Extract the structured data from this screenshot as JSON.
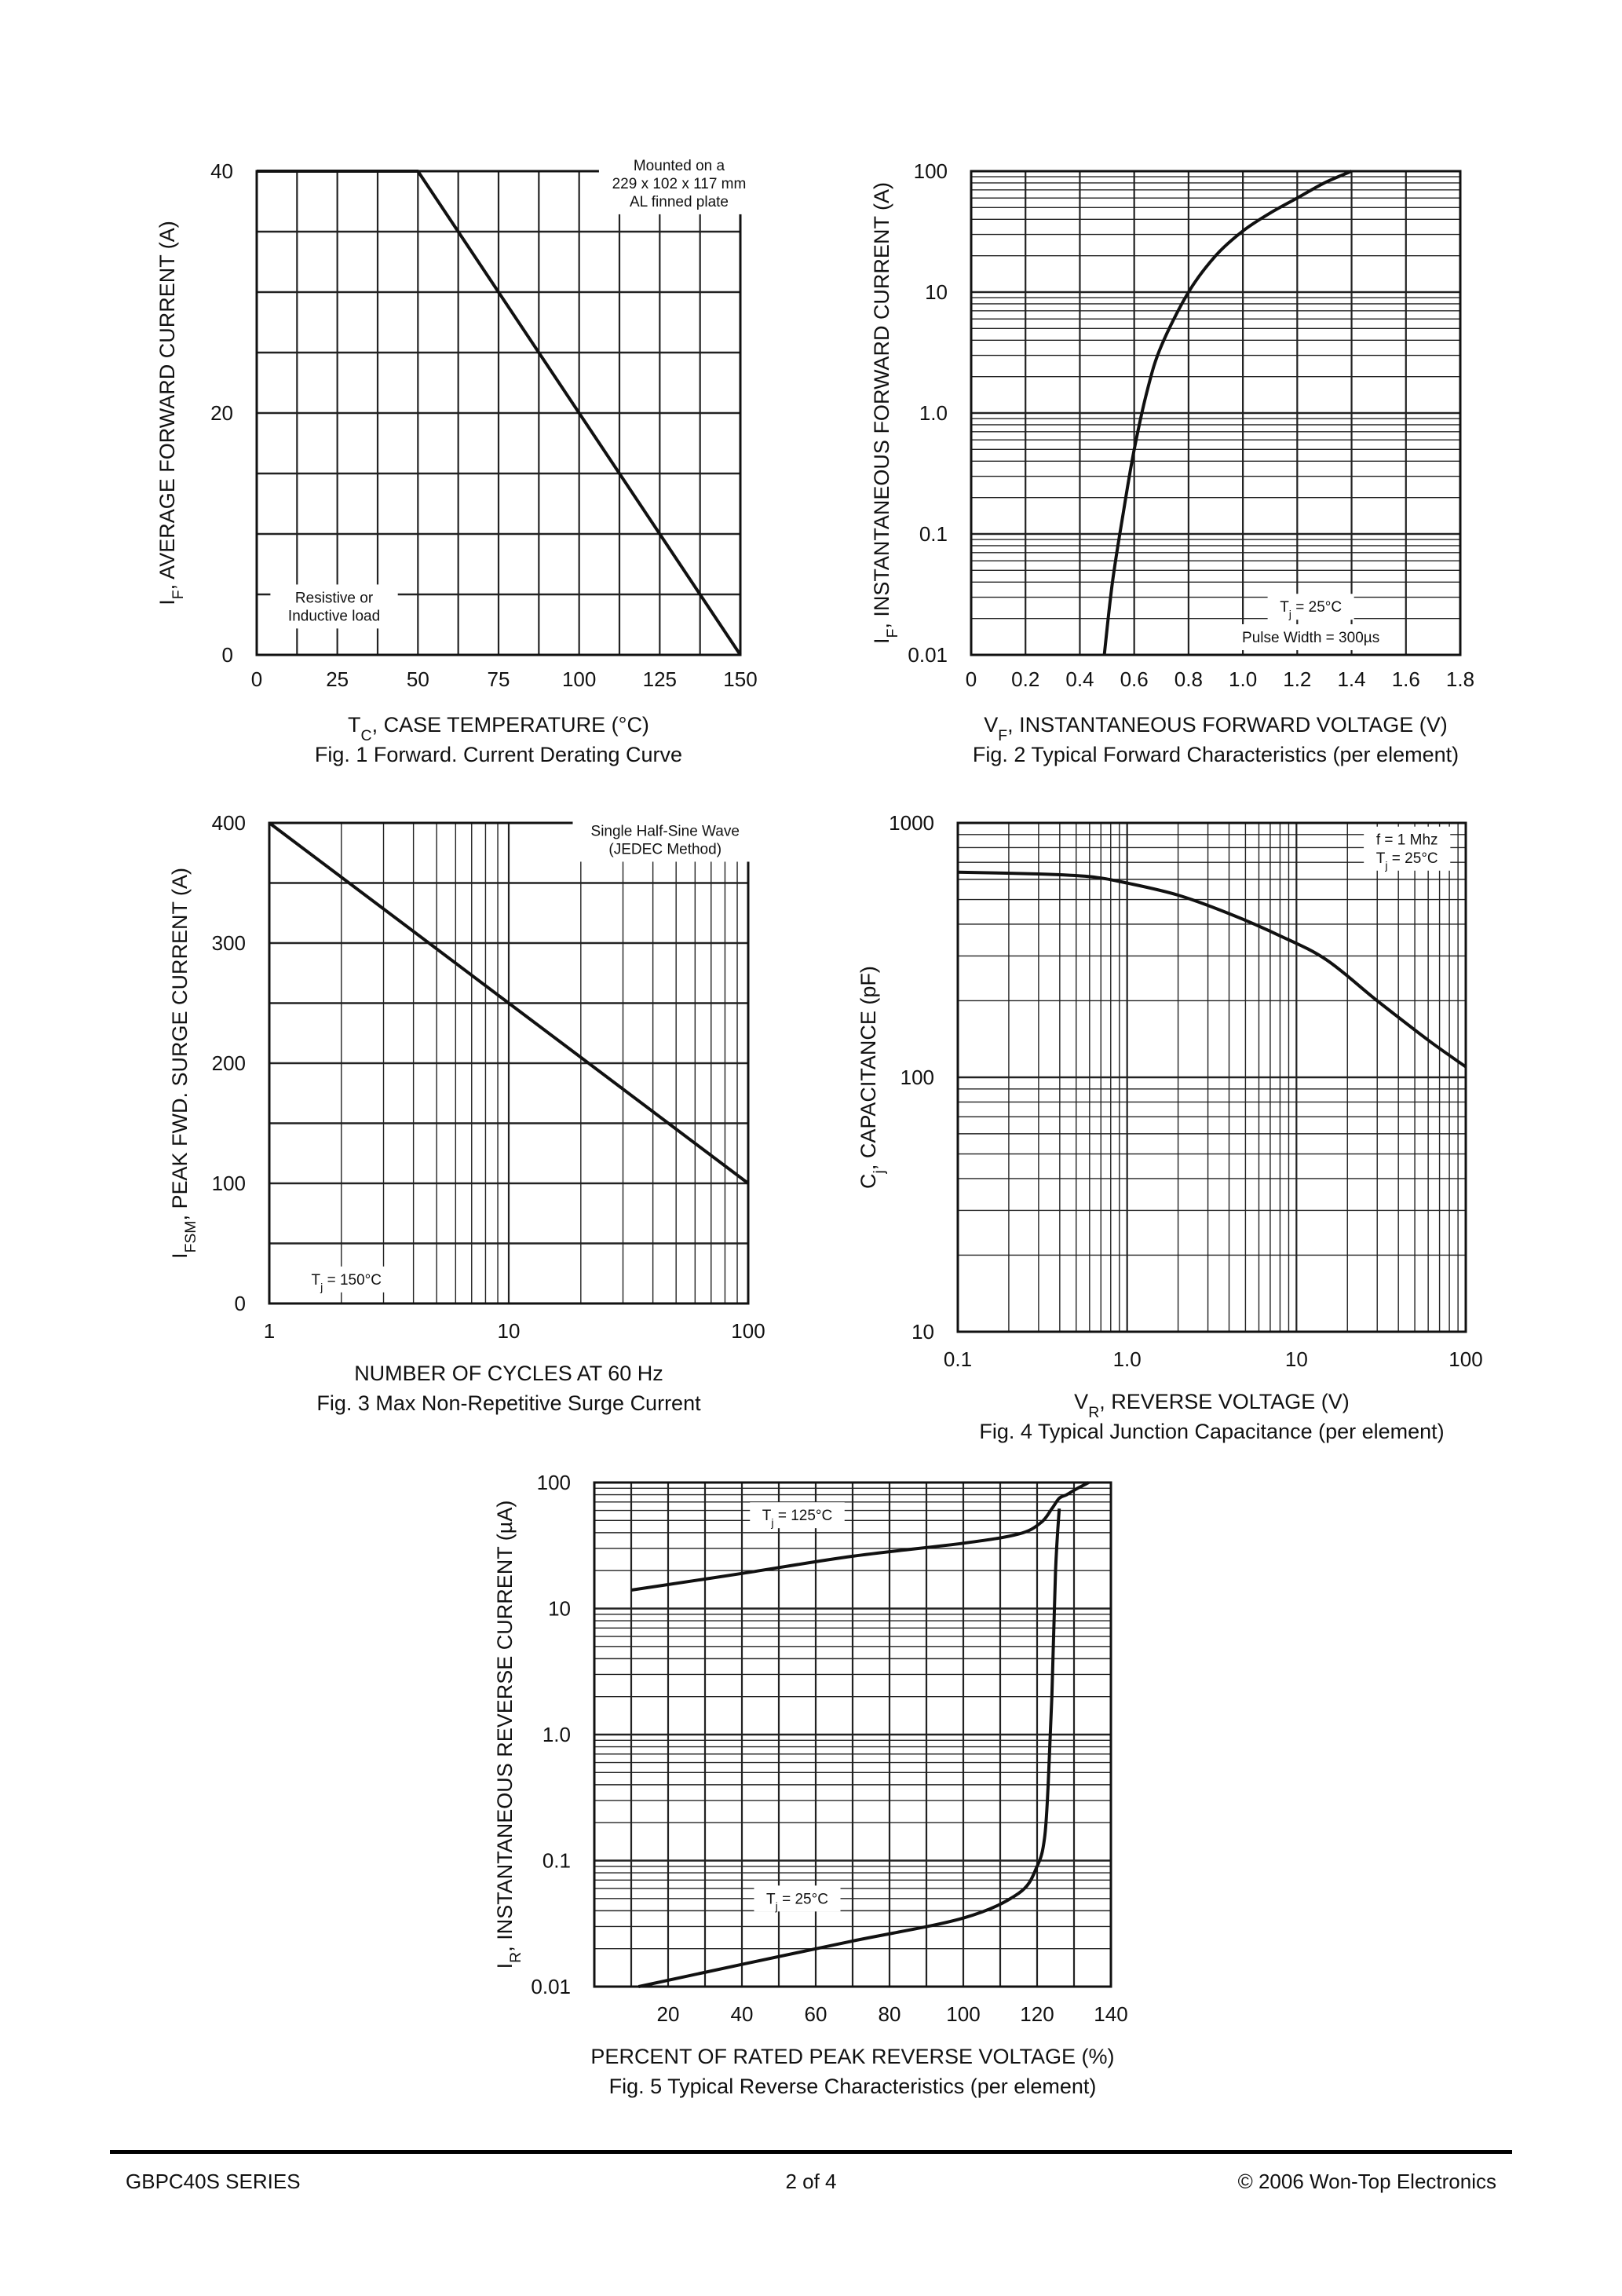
{
  "footer": {
    "series": "GBPC40S SERIES",
    "page": "2 of 4",
    "copyright": "© 2006 Won-Top Electronics"
  },
  "chart_data": [
    {
      "id": "fig1",
      "type": "line",
      "caption": "Fig. 1  Forward. Current Derating Curve",
      "xlabel": {
        "main": "T",
        "sub": "C",
        "rest": ", CASE TEMPERATURE (°C)"
      },
      "ylabel": {
        "main": "I",
        "sub": "F",
        "rest": ", AVERAGE FORWARD CURRENT (A)"
      },
      "xscale": "linear",
      "yscale": "linear",
      "xlim": [
        0,
        150
      ],
      "ylim": [
        0,
        40
      ],
      "xticks": [
        {
          "v": 0,
          "t": "0"
        },
        {
          "v": 25,
          "t": "25"
        },
        {
          "v": 50,
          "t": "50"
        },
        {
          "v": 75,
          "t": "75"
        },
        {
          "v": 100,
          "t": "100"
        },
        {
          "v": 125,
          "t": "125"
        },
        {
          "v": 150,
          "t": "150"
        }
      ],
      "yticks": [
        {
          "v": 0,
          "t": "0"
        },
        {
          "v": 20,
          "t": "20"
        },
        {
          "v": 40,
          "t": "40"
        }
      ],
      "grid": true,
      "series": [
        {
          "x": [
            0,
            50,
            150
          ],
          "y": [
            40,
            40,
            0
          ]
        }
      ],
      "notes": [
        {
          "lines": [
            "Mounted on a",
            "229 x 102 x 117 mm",
            "AL finned plate"
          ],
          "at": [
            131,
            39
          ]
        },
        {
          "lines": [
            "Resistive or",
            "Inductive load"
          ],
          "at": [
            24,
            4
          ]
        }
      ]
    },
    {
      "id": "fig2",
      "type": "line",
      "caption": "Fig. 2  Typical Forward Characteristics (per element)",
      "xlabel": {
        "main": "V",
        "sub": "F",
        "rest": ", INSTANTANEOUS FORWARD VOLTAGE (V)"
      },
      "ylabel": {
        "main": "I",
        "sub": "F",
        "rest": ", INSTANTANEOUS FORWARD CURRENT (A)"
      },
      "xscale": "linear",
      "yscale": "log",
      "xlim": [
        0,
        1.8
      ],
      "ylim": [
        0.01,
        100
      ],
      "xticks": [
        {
          "v": 0,
          "t": "0"
        },
        {
          "v": 0.2,
          "t": "0.2"
        },
        {
          "v": 0.4,
          "t": "0.4"
        },
        {
          "v": 0.6,
          "t": "0.6"
        },
        {
          "v": 0.8,
          "t": "0.8"
        },
        {
          "v": 1.0,
          "t": "1.0"
        },
        {
          "v": 1.2,
          "t": "1.2"
        },
        {
          "v": 1.4,
          "t": "1.4"
        },
        {
          "v": 1.6,
          "t": "1.6"
        },
        {
          "v": 1.8,
          "t": "1.8"
        }
      ],
      "yticks": [
        {
          "v": 0.01,
          "t": "0.01"
        },
        {
          "v": 0.1,
          "t": "0.1"
        },
        {
          "v": 1,
          "t": "1.0"
        },
        {
          "v": 10,
          "t": "10"
        },
        {
          "v": 100,
          "t": "100"
        }
      ],
      "grid": true,
      "series": [
        {
          "x": [
            0.49,
            0.52,
            0.56,
            0.6,
            0.65,
            0.7,
            0.8,
            0.9,
            1.0,
            1.1,
            1.2,
            1.3,
            1.4
          ],
          "y": [
            0.01,
            0.04,
            0.15,
            0.5,
            1.6,
            3.6,
            10,
            20,
            32,
            45,
            60,
            80,
            100
          ]
        }
      ],
      "notes": [
        {
          "lines": [
            "T|j| = 25°C"
          ],
          "at": [
            1.25,
            0.025
          ]
        },
        {
          "lines": [
            "Pulse Width = 300µs"
          ],
          "at": [
            1.25,
            0.014
          ]
        }
      ]
    },
    {
      "id": "fig3",
      "type": "line",
      "caption": "Fig. 3  Max Non-Repetitive Surge Current",
      "xlabel": {
        "main": "NUMBER OF CYCLES AT 60 Hz",
        "sub": "",
        "rest": ""
      },
      "ylabel": {
        "main": "I",
        "sub": "FSM",
        "rest": ", PEAK FWD. SURGE CURRENT (A)"
      },
      "xscale": "log",
      "yscale": "linear",
      "xlim": [
        1,
        100
      ],
      "ylim": [
        0,
        400
      ],
      "xticks": [
        {
          "v": 1,
          "t": "1"
        },
        {
          "v": 10,
          "t": "10"
        },
        {
          "v": 100,
          "t": "100"
        }
      ],
      "yticks": [
        {
          "v": 0,
          "t": "0"
        },
        {
          "v": 100,
          "t": "100"
        },
        {
          "v": 200,
          "t": "200"
        },
        {
          "v": 300,
          "t": "300"
        },
        {
          "v": 400,
          "t": "400"
        }
      ],
      "grid": true,
      "series": [
        {
          "x": [
            1,
            100
          ],
          "y": [
            400,
            100
          ]
        }
      ],
      "notes": [
        {
          "lines": [
            "Single Half-Sine Wave",
            "(JEDEC Method)"
          ],
          "at": [
            45,
            386
          ]
        },
        {
          "lines": [
            "T|j| = 150°C"
          ],
          "at": [
            2.1,
            20
          ]
        }
      ]
    },
    {
      "id": "fig4",
      "type": "line",
      "caption": "Fig. 4  Typical Junction Capacitance (per element)",
      "xlabel": {
        "main": "V",
        "sub": "R",
        "rest": ", REVERSE VOLTAGE (V)"
      },
      "ylabel": {
        "main": "C",
        "sub": "j",
        "rest": ", CAPACITANCE (pF)"
      },
      "xscale": "log",
      "yscale": "log",
      "xlim": [
        0.1,
        100
      ],
      "ylim": [
        10,
        1000
      ],
      "xticks": [
        {
          "v": 0.1,
          "t": "0.1"
        },
        {
          "v": 1,
          "t": "1.0"
        },
        {
          "v": 10,
          "t": "10"
        },
        {
          "v": 100,
          "t": "100"
        }
      ],
      "yticks": [
        {
          "v": 10,
          "t": "10"
        },
        {
          "v": 100,
          "t": "100"
        },
        {
          "v": 1000,
          "t": "1000"
        }
      ],
      "grid": true,
      "series": [
        {
          "x": [
            0.1,
            0.3,
            0.6,
            1,
            2,
            4,
            8,
            15,
            30,
            60,
            100
          ],
          "y": [
            640,
            630,
            615,
            580,
            520,
            440,
            360,
            290,
            200,
            140,
            110
          ]
        }
      ],
      "notes": [
        {
          "lines": [
            "f = 1 Mhz"
          ],
          "at": [
            45,
            860
          ]
        },
        {
          "lines": [
            "T|j| = 25°C"
          ],
          "at": [
            45,
            730
          ]
        }
      ]
    },
    {
      "id": "fig5",
      "type": "line",
      "caption": "Fig. 5  Typical Reverse Characteristics (per element)",
      "xlabel": {
        "main": "PERCENT OF RATED PEAK  REVERSE VOLTAGE (%)",
        "sub": "",
        "rest": ""
      },
      "ylabel": {
        "main": "I",
        "sub": "R",
        "rest": ", INSTANTANEOUS REVERSE CURRENT (µA)"
      },
      "xscale": "linear",
      "yscale": "log",
      "xlim": [
        0,
        140
      ],
      "ylim": [
        0.01,
        100
      ],
      "xticks": [
        {
          "v": 20,
          "t": "20"
        },
        {
          "v": 40,
          "t": "40"
        },
        {
          "v": 60,
          "t": "60"
        },
        {
          "v": 80,
          "t": "80"
        },
        {
          "v": 100,
          "t": "100"
        },
        {
          "v": 120,
          "t": "120"
        },
        {
          "v": 140,
          "t": "140"
        }
      ],
      "yticks": [
        {
          "v": 0.01,
          "t": "0.01"
        },
        {
          "v": 0.1,
          "t": "0.1"
        },
        {
          "v": 1,
          "t": "1.0"
        },
        {
          "v": 10,
          "t": "10"
        },
        {
          "v": 100,
          "t": "100"
        }
      ],
      "grid": true,
      "series": [
        {
          "x": [
            10,
            40,
            70,
            100,
            115,
            121,
            124,
            126,
            128,
            131,
            134
          ],
          "y": [
            14,
            19,
            26,
            33,
            39,
            48,
            62,
            75,
            80,
            90,
            100
          ]
        },
        {
          "x": [
            12,
            40,
            70,
            100,
            115,
            120,
            122,
            123,
            124,
            125,
            126
          ],
          "y": [
            0.01,
            0.015,
            0.023,
            0.035,
            0.055,
            0.09,
            0.15,
            0.4,
            2,
            20,
            62
          ]
        }
      ],
      "notes": [
        {
          "lines": [
            "T|j| = 125°C"
          ],
          "at": [
            55,
            55
          ]
        },
        {
          "lines": [
            "T|j| = 25°C"
          ],
          "at": [
            55,
            0.05
          ]
        }
      ]
    }
  ]
}
